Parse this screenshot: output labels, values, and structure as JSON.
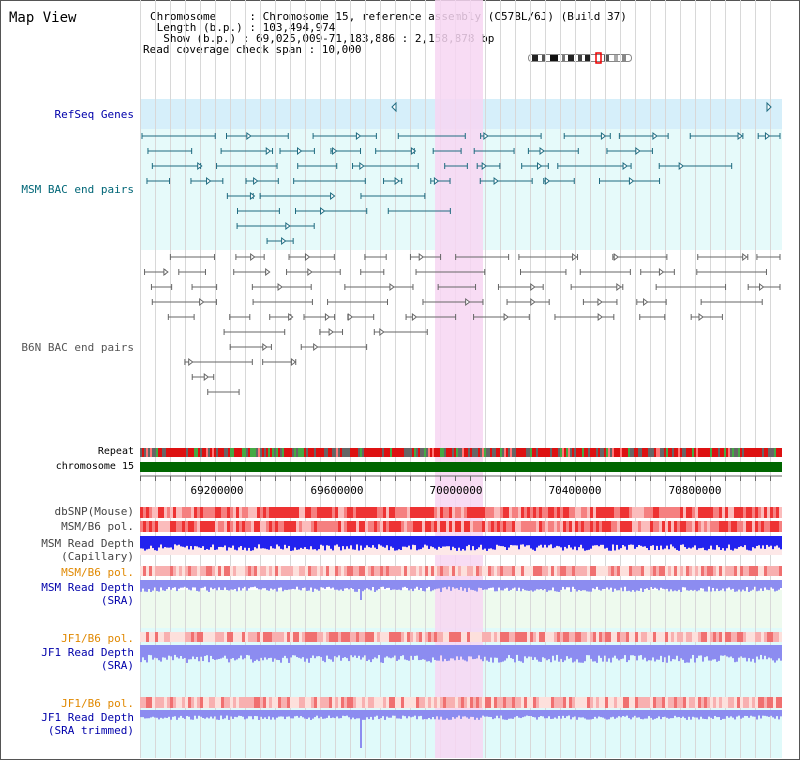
{
  "header": {
    "title": "Map View",
    "chromosome_line": "Chromosome     : Chromosome 15, reference assembly (C57BL/6J) (Build 37)",
    "length_line": " Length (b.p.) : 103,494,974",
    "show_line": "  Show (b.p.) : 69,025,009-71,183,886 : 2,158,878 bp",
    "coverage_line": "Read coverage check span : 10,000"
  },
  "tracks": {
    "refseq": "RefSeq Genes",
    "msm_bac": "MSM BAC end pairs",
    "b6n_bac": "B6N BAC end pairs",
    "repeat": "Repeat",
    "chromosome": "chromosome 15",
    "dbsnp": "dbSNP(Mouse)",
    "msm_b6_pol": "MSM/B6 pol.",
    "msm_depth_cap_1": "MSM Read Depth",
    "msm_depth_cap_2": "(Capillary)",
    "msm_b6_pol_2": "MSM/B6 pol.",
    "msm_depth_sra_1": "MSM Read Depth",
    "msm_depth_sra_2": "(SRA)",
    "jf1_b6_pol": "JF1/B6 pol.",
    "jf1_depth_sra_1": "JF1 Read Depth",
    "jf1_depth_sra_2": "(SRA)",
    "jf1_b6_pol_2": "JF1/B6 pol.",
    "jf1_depth_trim_1": "JF1 Read Depth",
    "jf1_depth_trim_2": "(SRA trimmed)"
  },
  "axis": {
    "ticks": [
      "69200000",
      "69600000",
      "70000000",
      "70400000",
      "70800000"
    ]
  },
  "colors": {
    "refseq_bg": "#d6effa",
    "msm_bac_bg": "#e6fafa",
    "feature_teal": "#1f6b80",
    "feature_gray": "#666666",
    "highlight": "#f7d6f2",
    "chrom_bar": "#006600",
    "depth_blue": "#2222ee",
    "depth_light": "#8c8cf0",
    "sra_bg": "#eefaee",
    "jf1_bg": "#e0fafa",
    "label_teal": "#006677",
    "label_blue": "#0000aa",
    "label_orange": "#e08800"
  }
}
